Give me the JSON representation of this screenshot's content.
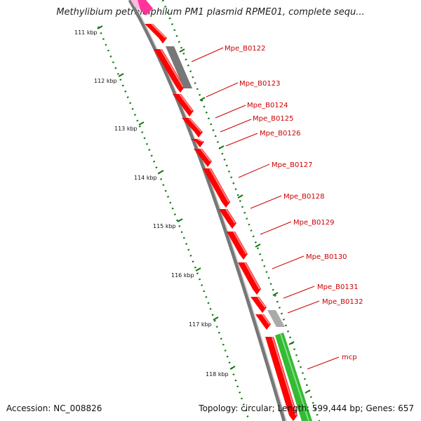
{
  "header": {
    "title": "Methylibium petroleiphilum PM1 plasmid RPME01, complete sequ..."
  },
  "footer": {
    "accession": "Accession: NC_008826",
    "stats": "Topology: circular; Length: 599,444 bp; Genes: 657"
  },
  "scale": {
    "unit": "kbp",
    "ticks": [
      "111 kbp",
      "112 kbp",
      "113 kbp",
      "114 kbp",
      "115 kbp",
      "116 kbp",
      "117 kbp",
      "118 kbp"
    ]
  },
  "genes": [
    {
      "label": "Mpe_B0122"
    },
    {
      "label": "Mpe_B0123"
    },
    {
      "label": "Mpe_B0124"
    },
    {
      "label": "Mpe_B0125"
    },
    {
      "label": "Mpe_B0126"
    },
    {
      "label": "Mpe_B0127"
    },
    {
      "label": "Mpe_B0128"
    },
    {
      "label": "Mpe_B0129"
    },
    {
      "label": "Mpe_B0130"
    },
    {
      "label": "Mpe_B0131"
    },
    {
      "label": "Mpe_B0132"
    },
    {
      "label": "mcp"
    }
  ],
  "colors": {
    "gene_forward": "#ff0000",
    "gene_grey": "#777777",
    "gene_green": "#33bb33",
    "label": "#cc0000",
    "backbone": "#777777",
    "ticks": "#117711"
  }
}
